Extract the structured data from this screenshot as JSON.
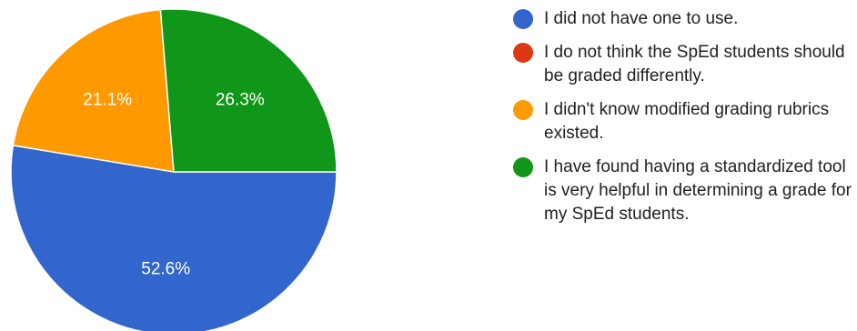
{
  "chart_data": {
    "type": "pie",
    "title": "",
    "series": [
      {
        "values": [
          52.6,
          0,
          21.1,
          26.3
        ]
      }
    ],
    "slices": [
      {
        "label": "I did not have one to use.",
        "value": 52.6,
        "display": "52.6%",
        "color": "#3366cc"
      },
      {
        "label": "I do not think the SpEd students should be graded differently.",
        "value": 0,
        "display": "",
        "color": "#dc3912"
      },
      {
        "label": "I didn't know modified grading rubrics existed.",
        "value": 21.1,
        "display": "21.1%",
        "color": "#ff9900"
      },
      {
        "label": "I have found having a standardized tool is very helpful in determining a grade for my SpEd students.",
        "value": 26.3,
        "display": "26.3%",
        "color": "#109618"
      }
    ],
    "legend_position": "right",
    "start": "3 o'clock",
    "direction": "clockwise"
  }
}
